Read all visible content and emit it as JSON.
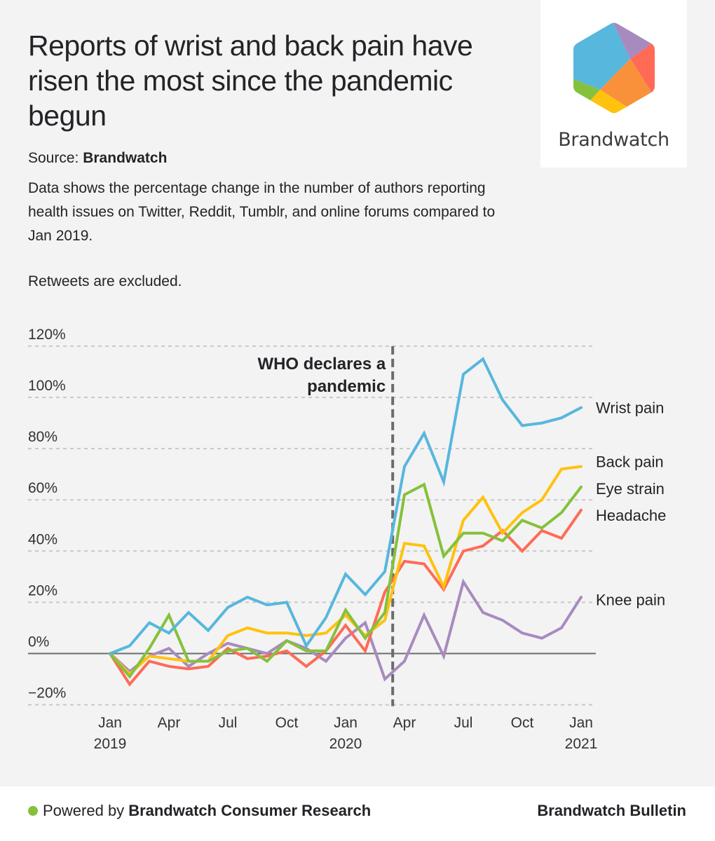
{
  "header": {
    "title": "Reports of wrist and back pain have risen the most since the pandemic begun",
    "source_label": "Source:",
    "source_name": "Brandwatch",
    "description": "Data shows the percentage change in the number of authors reporting health issues on Twitter, Reddit, Tumblr, and online forums compared to Jan 2019.",
    "note": "Retweets are excluded."
  },
  "logo": {
    "text": "Brandwatch",
    "colors": [
      "#57b7dd",
      "#a78bbf",
      "#ff6b57",
      "#f9913a",
      "#ffc20e",
      "#85c13c"
    ]
  },
  "footer": {
    "powered_prefix": "Powered by",
    "powered_name": "Brandwatch Consumer Research",
    "brand": "Brandwatch Bulletin",
    "dot_color": "#85c13c"
  },
  "chart_data": {
    "type": "line",
    "title": "Reports of wrist and back pain have risen the most since the pandemic begun",
    "xlabel": "",
    "ylabel": "",
    "ylim": [
      -20,
      120
    ],
    "yticks": [
      -20,
      0,
      20,
      40,
      60,
      80,
      100,
      120
    ],
    "ytick_labels": [
      "−20%",
      "0%",
      "20%",
      "40%",
      "60%",
      "80%",
      "100%",
      "120%"
    ],
    "grid": true,
    "x": [
      "2019-01",
      "2019-02",
      "2019-03",
      "2019-04",
      "2019-05",
      "2019-06",
      "2019-07",
      "2019-08",
      "2019-09",
      "2019-10",
      "2019-11",
      "2019-12",
      "2020-01",
      "2020-02",
      "2020-03",
      "2020-04",
      "2020-05",
      "2020-06",
      "2020-07",
      "2020-08",
      "2020-09",
      "2020-10",
      "2020-11",
      "2020-12",
      "2021-01"
    ],
    "xticks": [
      {
        "index": 0,
        "line1": "Jan",
        "line2": "2019"
      },
      {
        "index": 3,
        "line1": "Apr",
        "line2": ""
      },
      {
        "index": 6,
        "line1": "Jul",
        "line2": ""
      },
      {
        "index": 9,
        "line1": "Oct",
        "line2": ""
      },
      {
        "index": 12,
        "line1": "Jan",
        "line2": "2020"
      },
      {
        "index": 15,
        "line1": "Apr",
        "line2": ""
      },
      {
        "index": 18,
        "line1": "Jul",
        "line2": ""
      },
      {
        "index": 21,
        "line1": "Oct",
        "line2": ""
      },
      {
        "index": 24,
        "line1": "Jan",
        "line2": "2021"
      }
    ],
    "legend_placement": "right (direct labels)",
    "series": [
      {
        "name": "Wrist pain",
        "color": "#57b7dd",
        "values": [
          0,
          3,
          12,
          8,
          16,
          9,
          18,
          22,
          19,
          20,
          3,
          14,
          31,
          23,
          32,
          73,
          86,
          67,
          109,
          115,
          99,
          89,
          90,
          92,
          96
        ]
      },
      {
        "name": "Back pain",
        "color": "#ffc20e",
        "values": [
          0,
          -8,
          -1,
          -2,
          -3,
          -3,
          7,
          10,
          8,
          8,
          7,
          8,
          15,
          7,
          13,
          43,
          42,
          26,
          52,
          61,
          47,
          55,
          60,
          72,
          73
        ]
      },
      {
        "name": "Eye strain",
        "color": "#85c13c",
        "values": [
          0,
          -9,
          2,
          15,
          -3,
          -3,
          1,
          2,
          -3,
          5,
          1,
          1,
          17,
          6,
          16,
          62,
          66,
          38,
          47,
          47,
          44,
          52,
          49,
          55,
          65
        ]
      },
      {
        "name": "Headache",
        "color": "#ff6b57",
        "values": [
          0,
          -12,
          -3,
          -5,
          -6,
          -5,
          2,
          -2,
          -1,
          1,
          -5,
          1,
          11,
          1,
          24,
          36,
          35,
          25,
          40,
          42,
          48,
          40,
          48,
          45,
          56
        ]
      },
      {
        "name": "Knee pain",
        "color": "#a78bbf",
        "values": [
          0,
          -7,
          -1,
          2,
          -5,
          0,
          4,
          2,
          0,
          5,
          2,
          -3,
          6,
          12,
          -10,
          -3,
          15,
          -1,
          28,
          16,
          13,
          8,
          6,
          10,
          22
        ]
      }
    ],
    "label_values": {
      "Wrist pain": 96,
      "Back pain": 75,
      "Eye strain": 64.5,
      "Headache": 54,
      "Knee pain": 21
    },
    "annotations": [
      {
        "text_line1": "WHO declares a",
        "text_line2": "pandemic",
        "x_index": 14.4,
        "style": "dashed vertical line"
      }
    ]
  }
}
